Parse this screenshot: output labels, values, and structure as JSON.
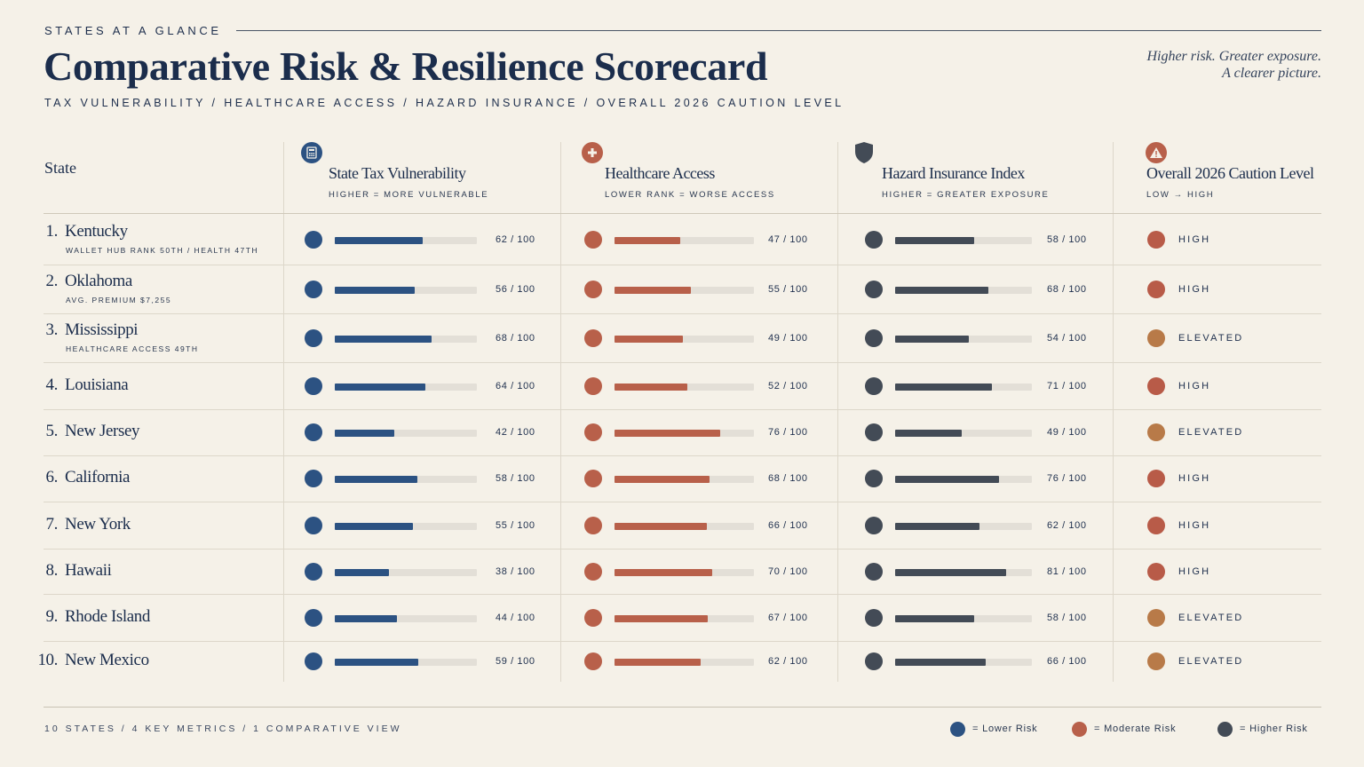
{
  "header": {
    "eyebrow": "STATES AT A GLANCE",
    "title": "Comparative Risk & Resilience Scorecard",
    "subtitle": "TAX VULNERABILITY  /  HEALTHCARE ACCESS  /  HAZARD INSURANCE  /  OVERALL 2026 CAUTION LEVEL",
    "tagline_line1": "Higher risk. Greater exposure.",
    "tagline_line2": "A clearer picture."
  },
  "colors": {
    "tax": "#2c5282",
    "health": "#b8604a",
    "hazard": "#434b56",
    "high": "#b85b48",
    "elevated": "#b87a48",
    "track": "#e3dfd7"
  },
  "table": {
    "state_header": "State",
    "columns": [
      {
        "key": "tax",
        "icon": "calculator-icon",
        "title": "State Tax Vulnerability",
        "subtitle": "HIGHER = MORE VULNERABLE"
      },
      {
        "key": "health",
        "icon": "medical-cross-icon",
        "title": "Healthcare Access",
        "subtitle": "LOWER RANK = WORSE ACCESS"
      },
      {
        "key": "hazard",
        "icon": "shield-icon",
        "title": "Hazard Insurance Index",
        "subtitle": "HIGHER = GREATER EXPOSURE"
      },
      {
        "key": "caution",
        "icon": "warning-icon",
        "title": "Overall 2026 Caution Level",
        "subtitle": "LOW  →  HIGH"
      }
    ]
  },
  "chart_data": {
    "type": "bar",
    "max": 100,
    "value_suffix": " / 100",
    "rows": [
      {
        "rank": "1.",
        "state": "Kentucky",
        "note": "WALLET HUB RANK 50TH / HEALTH 47TH",
        "tax": 62,
        "health": 47,
        "hazard": 58,
        "caution": "HIGH"
      },
      {
        "rank": "2.",
        "state": "Oklahoma",
        "note": "AVG. PREMIUM $7,255",
        "tax": 56,
        "health": 55,
        "hazard": 68,
        "caution": "HIGH"
      },
      {
        "rank": "3.",
        "state": "Mississippi",
        "note": "HEALTHCARE ACCESS 49TH",
        "tax": 68,
        "health": 49,
        "hazard": 54,
        "caution": "ELEVATED"
      },
      {
        "rank": "4.",
        "state": "Louisiana",
        "note": "",
        "tax": 64,
        "health": 52,
        "hazard": 71,
        "caution": "HIGH"
      },
      {
        "rank": "5.",
        "state": "New Jersey",
        "note": "",
        "tax": 42,
        "health": 76,
        "hazard": 49,
        "caution": "ELEVATED"
      },
      {
        "rank": "6.",
        "state": "California",
        "note": "",
        "tax": 58,
        "health": 68,
        "hazard": 76,
        "caution": "HIGH"
      },
      {
        "rank": "7.",
        "state": "New York",
        "note": "",
        "tax": 55,
        "health": 66,
        "hazard": 62,
        "caution": "HIGH"
      },
      {
        "rank": "8.",
        "state": "Hawaii",
        "note": "",
        "tax": 38,
        "health": 70,
        "hazard": 81,
        "caution": "HIGH"
      },
      {
        "rank": "9.",
        "state": "Rhode Island",
        "note": "",
        "tax": 44,
        "health": 67,
        "hazard": 58,
        "caution": "ELEVATED"
      },
      {
        "rank": "10.",
        "state": "New Mexico",
        "note": "",
        "tax": 59,
        "health": 62,
        "hazard": 66,
        "caution": "ELEVATED"
      }
    ]
  },
  "footer": {
    "summary": "10 STATES  /  4 KEY METRICS  /  1 COMPARATIVE VIEW",
    "legend": [
      {
        "label": "= Lower Risk",
        "color": "#2c5282"
      },
      {
        "label": "= Moderate Risk",
        "color": "#b8604a"
      },
      {
        "label": "= Higher Risk",
        "color": "#434b56"
      }
    ]
  }
}
